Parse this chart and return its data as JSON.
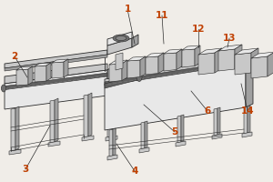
{
  "bg_color": "#f0ede8",
  "line_color": "#2a2a2a",
  "fill_light": "#e8e8e8",
  "fill_lighter": "#f2f2f2",
  "fill_mid": "#c8c8c8",
  "fill_dark": "#a0a0a0",
  "fill_darker": "#707070",
  "fill_belt": "#606060",
  "label_fontsize": 7.5,
  "label_color": "#c04000",
  "labels_info": [
    [
      "3",
      28,
      14,
      55,
      62
    ],
    [
      "4",
      148,
      12,
      128,
      42
    ],
    [
      "5",
      192,
      55,
      158,
      85
    ],
    [
      "6",
      228,
      78,
      210,
      100
    ],
    [
      "2",
      16,
      138,
      30,
      115
    ],
    [
      "1",
      140,
      190,
      148,
      152
    ],
    [
      "11",
      178,
      183,
      180,
      152
    ],
    [
      "12",
      218,
      168,
      218,
      148
    ],
    [
      "13",
      252,
      158,
      250,
      148
    ],
    [
      "14",
      272,
      78,
      265,
      108
    ]
  ]
}
